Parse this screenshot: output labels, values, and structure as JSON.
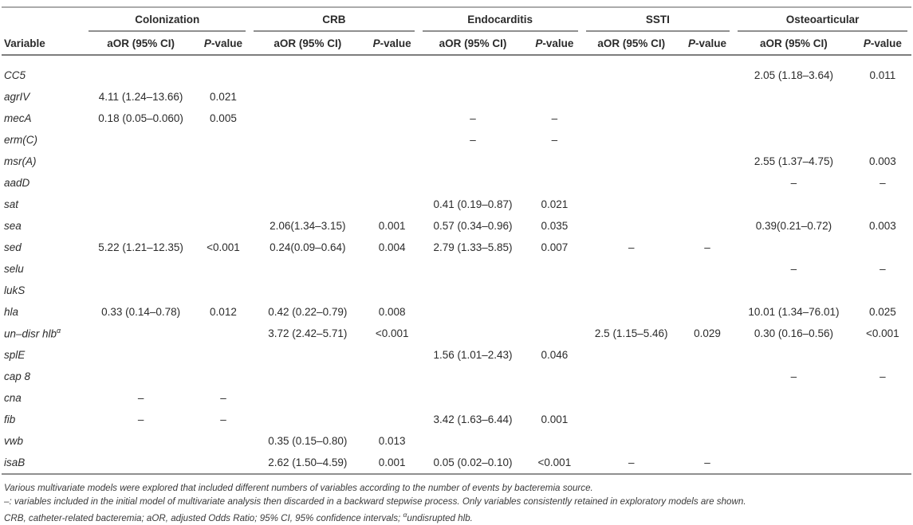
{
  "table": {
    "variable_header": "Variable",
    "groups": [
      {
        "label": "Colonization"
      },
      {
        "label": "CRB"
      },
      {
        "label": "Endocarditis"
      },
      {
        "label": "SSTI"
      },
      {
        "label": "Osteoarticular"
      }
    ],
    "subheaders": {
      "aor": "aOR (95% CI)",
      "p_italic": "P",
      "p_rest": "-value"
    },
    "rows": [
      {
        "variable": "CC5",
        "cells": [
          "",
          "",
          "",
          "",
          "",
          "",
          "",
          "",
          "2.05 (1.18–3.64)",
          "0.011"
        ]
      },
      {
        "variable": "agrIV",
        "cells": [
          "4.11 (1.24–13.66)",
          "0.021",
          "",
          "",
          "",
          "",
          "",
          "",
          "",
          ""
        ]
      },
      {
        "variable": "mecA",
        "cells": [
          "0.18 (0.05–0.060)",
          "0.005",
          "",
          "",
          "–",
          "–",
          "",
          "",
          "",
          ""
        ]
      },
      {
        "variable": "erm(C)",
        "cells": [
          "",
          "",
          "",
          "",
          "–",
          "–",
          "",
          "",
          "",
          ""
        ]
      },
      {
        "variable": "msr(A)",
        "cells": [
          "",
          "",
          "",
          "",
          "",
          "",
          "",
          "",
          "2.55 (1.37–4.75)",
          "0.003"
        ]
      },
      {
        "variable": "aadD",
        "cells": [
          "",
          "",
          "",
          "",
          "",
          "",
          "",
          "",
          "–",
          "–"
        ]
      },
      {
        "variable": "sat",
        "cells": [
          "",
          "",
          "",
          "",
          "0.41 (0.19–0.87)",
          "0.021",
          "",
          "",
          "",
          ""
        ]
      },
      {
        "variable": "sea",
        "cells": [
          "",
          "",
          "2.06(1.34–3.15)",
          "0.001",
          "0.57 (0.34–0.96)",
          "0.035",
          "",
          "",
          "0.39(0.21–0.72)",
          "0.003"
        ]
      },
      {
        "variable": "sed",
        "cells": [
          "5.22 (1.21–12.35)",
          "<0.001",
          "0.24(0.09–0.64)",
          "0.004",
          "2.79 (1.33–5.85)",
          "0.007",
          "–",
          "–",
          "",
          ""
        ]
      },
      {
        "variable": "selu",
        "cells": [
          "",
          "",
          "",
          "",
          "",
          "",
          "",
          "",
          "–",
          "–"
        ]
      },
      {
        "variable": "lukS",
        "cells": [
          "",
          "",
          "",
          "",
          "",
          "",
          "",
          "",
          "",
          ""
        ]
      },
      {
        "variable": "hla",
        "cells": [
          "0.33 (0.14–0.78)",
          "0.012",
          "0.42 (0.22–0.79)",
          "0.008",
          "",
          "",
          "",
          "",
          "10.01 (1.34–76.01)",
          "0.025"
        ]
      },
      {
        "variable": "un–disr hlb",
        "sup": "α",
        "cells": [
          "",
          "",
          "3.72 (2.42–5.71)",
          "<0.001",
          "",
          "",
          "2.5 (1.15–5.46)",
          "0.029",
          "0.30 (0.16–0.56)",
          "<0.001"
        ]
      },
      {
        "variable": "splE",
        "cells": [
          "",
          "",
          "",
          "",
          "1.56 (1.01–2.43)",
          "0.046",
          "",
          "",
          "",
          ""
        ]
      },
      {
        "variable": "cap 8",
        "cells": [
          "",
          "",
          "",
          "",
          "",
          "",
          "",
          "",
          "–",
          "–"
        ]
      },
      {
        "variable": "cna",
        "cells": [
          "–",
          "–",
          "",
          "",
          "",
          "",
          "",
          "",
          "",
          ""
        ]
      },
      {
        "variable": "fib",
        "cells": [
          "–",
          "–",
          "",
          "",
          "3.42 (1.63–6.44)",
          "0.001",
          "",
          "",
          "",
          ""
        ]
      },
      {
        "variable": "vwb",
        "cells": [
          "",
          "",
          "0.35 (0.15–0.80)",
          "0.013",
          "",
          "",
          "",
          "",
          "",
          ""
        ]
      },
      {
        "variable": "isaB",
        "cells": [
          "",
          "",
          "2.62 (1.50–4.59)",
          "0.001",
          "0.05 (0.02–0.10)",
          "<0.001",
          "–",
          "–",
          "",
          ""
        ]
      }
    ]
  },
  "footnotes": {
    "line1": "Various multivariate models were explored that included different numbers of variables according to the number of events by bacteremia source.",
    "line2": "–: variables included in the initial model of multivariate analysis then discarded in a backward stepwise process. Only variables consistently retained in exploratory models are shown.",
    "line3": {
      "prefix": "CRB, catheter-related bacteremia; aOR, adjusted Odds Ratio; 95% CI, 95% confidence intervals; ",
      "sup": "α",
      "suffix": "undisrupted hlb."
    }
  }
}
